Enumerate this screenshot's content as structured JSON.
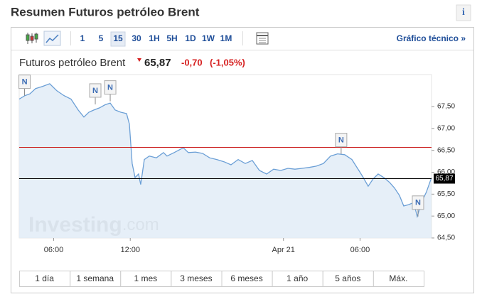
{
  "header": {
    "title": "Resumen Futuros petróleo Brent",
    "info": "i"
  },
  "toolbar": {
    "intervals": [
      "1",
      "5",
      "15",
      "30",
      "1H",
      "5H",
      "1D",
      "1W",
      "1M"
    ],
    "active": "15",
    "link": "Gráfico técnico »"
  },
  "quote": {
    "name": "Futuros petróleo Brent",
    "price": "65,87",
    "change": "-0,70",
    "change_percent": "(-1,05%)"
  },
  "chart_data": {
    "type": "area",
    "x": [
      3.3,
      3.75,
      4.14,
      4.58,
      5.14,
      5.69,
      6.25,
      6.81,
      7.36,
      7.92,
      8.37,
      8.76,
      9.15,
      9.59,
      10.03,
      10.43,
      10.82,
      11.26,
      11.71,
      11.93,
      12.15,
      12.38,
      12.65,
      12.82,
      13.1,
      13.49,
      14.05,
      14.6,
      14.88,
      15.44,
      16.16,
      16.55,
      17.11,
      17.67,
      18.22,
      18.78,
      19.34,
      19.89,
      20.45,
      21.01,
      21.56,
      22.12,
      22.68,
      23.23,
      23.79,
      24.35,
      24.9,
      25.46,
      26.02,
      26.57,
      27.13,
      27.69,
      28.24,
      28.8,
      29.36,
      29.91,
      30.19,
      30.64,
      31.03,
      31.42,
      31.86,
      32.31,
      32.7,
      33.09,
      33.42,
      33.81,
      34.2,
      34.48,
      34.81,
      35.2,
      35.59
    ],
    "values": [
      67.67,
      67.75,
      67.79,
      67.91,
      67.96,
      68.02,
      67.86,
      67.75,
      67.67,
      67.42,
      67.26,
      67.37,
      67.42,
      67.47,
      67.54,
      67.58,
      67.42,
      67.37,
      67.34,
      67.1,
      66.2,
      65.88,
      65.96,
      65.72,
      66.29,
      66.37,
      66.33,
      66.45,
      66.37,
      66.45,
      66.56,
      66.45,
      66.46,
      66.43,
      66.33,
      66.29,
      66.24,
      66.17,
      66.29,
      66.2,
      66.27,
      66.04,
      65.96,
      66.07,
      66.04,
      66.09,
      66.07,
      66.09,
      66.11,
      66.14,
      66.2,
      66.37,
      66.42,
      66.4,
      66.29,
      66.04,
      65.91,
      65.68,
      65.85,
      65.96,
      65.88,
      65.77,
      65.64,
      65.47,
      65.23,
      65.26,
      65.31,
      64.99,
      65.31,
      65.55,
      65.87
    ],
    "color": "#6b9fd6",
    "fill": "#e2ecf7",
    "xlim": [
      3.3,
      35.6
    ],
    "ylim": [
      64.5,
      68.23
    ],
    "xticks": [
      {
        "value": 6,
        "label": "06:00"
      },
      {
        "value": 12,
        "label": "12:00"
      },
      {
        "value": 24,
        "label": "Apr 21"
      },
      {
        "value": 30,
        "label": "06:00"
      }
    ],
    "yticks": [
      {
        "value": 64.5,
        "label": "64,50"
      },
      {
        "value": 65,
        "label": "65,00"
      },
      {
        "value": 65.5,
        "label": "65,50"
      },
      {
        "value": 66,
        "label": "66,00"
      },
      {
        "value": 66.5,
        "label": "66,50"
      },
      {
        "value": 67,
        "label": "67,00"
      },
      {
        "value": 67.5,
        "label": "67,50"
      }
    ],
    "reference_lines": [
      {
        "value": 66.57,
        "color": "#cc2222"
      },
      {
        "value": 65.87,
        "color": "#000000",
        "label": "65,87"
      }
    ],
    "news_markers": [
      {
        "x": 3.72,
        "y": 67.75,
        "label": "N"
      },
      {
        "x": 9.26,
        "y": 67.55,
        "label": "N"
      },
      {
        "x": 10.43,
        "y": 67.62,
        "label": "N"
      },
      {
        "x": 28.52,
        "y": 66.42,
        "label": "N"
      },
      {
        "x": 34.54,
        "y": 64.99,
        "label": "N"
      }
    ]
  },
  "watermark": {
    "brand": "Investing",
    "suffix": ".com"
  },
  "ranges": [
    "1 día",
    "1 semana",
    "1 mes",
    "3 meses",
    "6 meses",
    "1 año",
    "5 años",
    "Máx."
  ]
}
